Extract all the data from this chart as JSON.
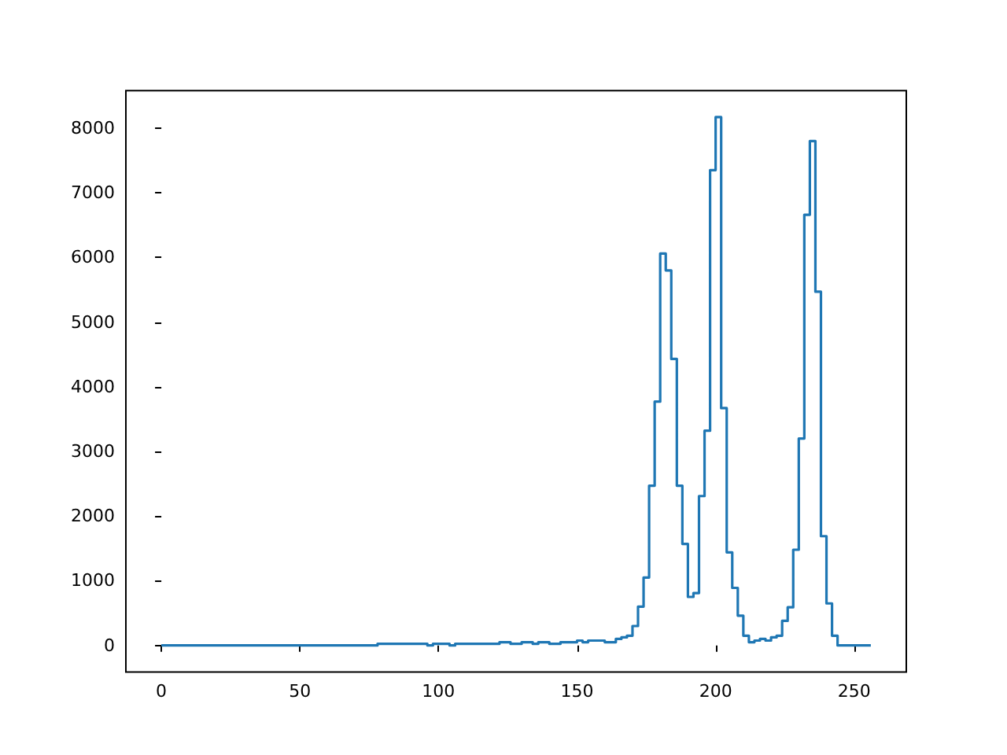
{
  "chart_data": {
    "type": "histogram",
    "color": "#1f77b4",
    "bins": [
      0,
      2,
      4,
      6,
      8,
      10,
      12,
      14,
      16,
      18,
      20,
      22,
      24,
      26,
      28,
      30,
      32,
      34,
      36,
      38,
      40,
      42,
      44,
      46,
      48,
      50,
      52,
      54,
      56,
      58,
      60,
      62,
      64,
      66,
      68,
      70,
      72,
      74,
      76,
      78,
      80,
      82,
      84,
      86,
      88,
      90,
      92,
      94,
      96,
      98,
      100,
      102,
      104,
      106,
      108,
      110,
      112,
      114,
      116,
      118,
      120,
      122,
      124,
      126,
      128,
      130,
      132,
      134,
      136,
      138,
      140,
      142,
      144,
      146,
      148,
      150,
      152,
      154,
      156,
      158,
      160,
      162,
      164,
      166,
      168,
      170,
      172,
      174,
      176,
      178,
      180,
      182,
      184,
      186,
      188,
      190,
      192,
      194,
      196,
      198,
      200,
      202,
      204,
      206,
      208,
      210,
      212,
      214,
      216,
      218,
      220,
      222,
      224,
      226,
      228,
      230,
      232,
      234,
      236,
      238,
      240,
      242,
      244,
      246,
      248,
      250,
      252,
      254,
      256
    ],
    "values": [
      0,
      0,
      0,
      0,
      0,
      0,
      0,
      0,
      0,
      0,
      0,
      0,
      0,
      0,
      0,
      0,
      0,
      0,
      0,
      0,
      0,
      0,
      0,
      0,
      0,
      0,
      0,
      0,
      0,
      0,
      0,
      0,
      0,
      0,
      0,
      0,
      0,
      0,
      0,
      25,
      25,
      25,
      25,
      25,
      25,
      25,
      25,
      25,
      0,
      25,
      25,
      25,
      0,
      25,
      25,
      25,
      25,
      25,
      25,
      25,
      25,
      50,
      50,
      25,
      25,
      50,
      50,
      25,
      50,
      50,
      25,
      25,
      50,
      50,
      50,
      75,
      50,
      75,
      75,
      75,
      50,
      50,
      100,
      125,
      150,
      300,
      600,
      1050,
      2470,
      3770,
      6060,
      5800,
      4430,
      2470,
      1570,
      750,
      810,
      2310,
      3320,
      7350,
      8170,
      3670,
      1440,
      890,
      460,
      150,
      50,
      75,
      100,
      75,
      125,
      150,
      380,
      590,
      1480,
      3200,
      6660,
      7800,
      5470,
      1690,
      650,
      150,
      0,
      0,
      0,
      0,
      0,
      0
    ],
    "xlim": [
      -12.8,
      268.8
    ],
    "ylim": [
      -410,
      8580
    ],
    "xticks": [
      0,
      50,
      100,
      150,
      200,
      250
    ],
    "yticks": [
      0,
      1000,
      2000,
      3000,
      4000,
      5000,
      6000,
      7000,
      8000
    ],
    "grid": false
  }
}
